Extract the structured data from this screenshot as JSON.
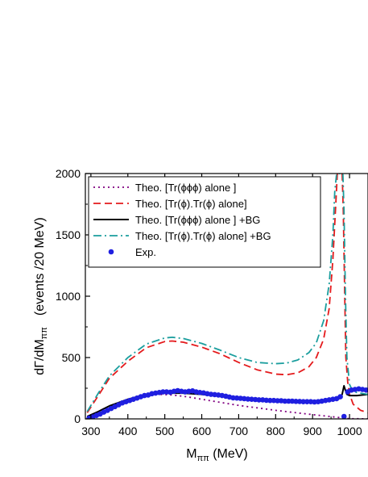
{
  "chart_data": {
    "type": "line",
    "title": "",
    "xlabel": "M",
    "xlabel_sub": "ππ",
    "xlabel_unit": " (MeV)",
    "ylabel_main": "dΓ/dM",
    "ylabel_sub": "ππ",
    "ylabel_unit": "(events /20 MeV)",
    "xlim": [
      285,
      1050
    ],
    "ylim": [
      0,
      2000
    ],
    "xticks": [
      300,
      400,
      500,
      600,
      700,
      800,
      900,
      1000
    ],
    "yticks": [
      0,
      500,
      1000,
      1500,
      2000
    ],
    "grid": false,
    "legend_position": "top-left",
    "series": [
      {
        "name": "Theo. [Tr(ϕϕϕ) alone ]",
        "style": "dotted",
        "color": "#800080",
        "x": [
          290,
          320,
          350,
          400,
          450,
          480,
          520,
          560,
          600,
          650,
          700,
          750,
          800,
          850,
          900,
          940,
          970,
          985,
          1000,
          1020,
          1050
        ],
        "y": [
          20,
          60,
          100,
          160,
          195,
          200,
          195,
          180,
          160,
          135,
          110,
          90,
          70,
          52,
          35,
          22,
          12,
          6,
          2,
          1,
          0
        ]
      },
      {
        "name": "Theo. [Tr(ϕ).Tr(ϕ) alone]",
        "style": "dashed",
        "color": "#e41a1c",
        "x": [
          290,
          320,
          350,
          400,
          450,
          500,
          520,
          550,
          600,
          650,
          700,
          750,
          800,
          830,
          860,
          890,
          910,
          930,
          945,
          955,
          962,
          967,
          975,
          980,
          983,
          987,
          990,
          995,
          1000,
          1010,
          1030,
          1050
        ],
        "y": [
          50,
          190,
          330,
          470,
          580,
          630,
          635,
          625,
          585,
          530,
          460,
          400,
          365,
          360,
          375,
          425,
          500,
          650,
          900,
          1300,
          1700,
          2000,
          2000,
          2000,
          1700,
          1000,
          500,
          300,
          200,
          120,
          70,
          50
        ]
      },
      {
        "name": "Theo. [Tr(ϕϕϕ) alone ] +BG",
        "style": "solid",
        "color": "#000000",
        "x": [
          290,
          320,
          350,
          400,
          450,
          500,
          550,
          600,
          650,
          700,
          750,
          800,
          850,
          900,
          950,
          970,
          980,
          985,
          988,
          993,
          1000,
          1020,
          1050
        ],
        "y": [
          20,
          60,
          105,
          160,
          200,
          210,
          210,
          200,
          185,
          170,
          160,
          150,
          148,
          148,
          150,
          160,
          200,
          270,
          240,
          200,
          190,
          190,
          200
        ]
      },
      {
        "name": "Theo. [Tr(ϕ).Tr(ϕ) alone] +BG",
        "style": "dashdot",
        "color": "#1b9e9e",
        "x": [
          290,
          320,
          350,
          400,
          450,
          500,
          520,
          550,
          600,
          650,
          700,
          750,
          800,
          830,
          860,
          890,
          910,
          930,
          945,
          955,
          960,
          965,
          975,
          982,
          985,
          989,
          993,
          1000,
          1010,
          1030,
          1050
        ],
        "y": [
          60,
          210,
          350,
          500,
          610,
          660,
          665,
          655,
          615,
          560,
          500,
          460,
          450,
          455,
          480,
          540,
          620,
          800,
          1100,
          1500,
          1850,
          2000,
          2000,
          2000,
          1700,
          1000,
          500,
          280,
          220,
          210,
          200
        ]
      },
      {
        "name": "Exp.",
        "style": "markers",
        "color": "#1f1fe0",
        "x": [
          295,
          305,
          315,
          325,
          335,
          345,
          355,
          365,
          375,
          385,
          395,
          405,
          415,
          425,
          435,
          445,
          455,
          465,
          475,
          485,
          495,
          505,
          515,
          525,
          535,
          545,
          555,
          565,
          575,
          585,
          595,
          605,
          615,
          625,
          635,
          645,
          655,
          665,
          675,
          685,
          695,
          705,
          715,
          725,
          735,
          745,
          755,
          765,
          775,
          785,
          795,
          805,
          815,
          825,
          835,
          845,
          855,
          865,
          875,
          885,
          895,
          905,
          915,
          925,
          935,
          945,
          955,
          965,
          975,
          985,
          995,
          1005,
          1015,
          1025,
          1035,
          1045
        ],
        "y": [
          5,
          15,
          28,
          40,
          55,
          70,
          85,
          100,
          115,
          130,
          140,
          150,
          160,
          170,
          180,
          190,
          195,
          205,
          210,
          215,
          220,
          220,
          218,
          225,
          230,
          225,
          220,
          225,
          228,
          220,
          215,
          212,
          205,
          200,
          198,
          195,
          190,
          185,
          178,
          172,
          170,
          168,
          165,
          162,
          160,
          158,
          155,
          155,
          152,
          150,
          150,
          148,
          148,
          145,
          145,
          145,
          143,
          142,
          140,
          140,
          140,
          138,
          140,
          145,
          150,
          155,
          160,
          165,
          180,
          20,
          220,
          235,
          240,
          245,
          240,
          235
        ]
      }
    ]
  }
}
